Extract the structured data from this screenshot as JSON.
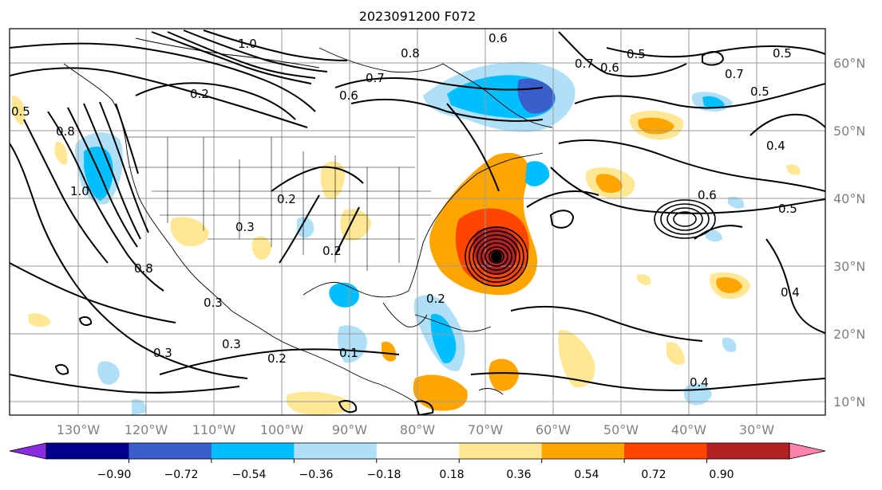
{
  "title": "2023091200 F072",
  "lon_labels": [
    "130°W",
    "120°W",
    "110°W",
    "100°W",
    "90°W",
    "80°W",
    "70°W",
    "60°W",
    "50°W",
    "40°W",
    "30°W"
  ],
  "lat_labels": [
    "10°N",
    "20°N",
    "30°N",
    "40°N",
    "50°N",
    "60°N"
  ],
  "colorbar": {
    "ticks": [
      "−0.90",
      "−0.72",
      "−0.54",
      "−0.36",
      "−0.18",
      "0.18",
      "0.36",
      "0.54",
      "0.72",
      "0.90"
    ],
    "colors": [
      "#8a2be2",
      "#00008b",
      "#3a5fcd",
      "#00bfff",
      "#b0e0f8",
      "#ffffff",
      "#ffe793",
      "#ffa500",
      "#ff4500",
      "#b22222",
      "#ff82ab"
    ]
  },
  "contour_labels": [
    {
      "text": "1.0"
    },
    {
      "text": "0.8"
    },
    {
      "text": "0.7"
    },
    {
      "text": "0.6"
    },
    {
      "text": "0.2"
    },
    {
      "text": "0.3"
    },
    {
      "text": "0.6"
    },
    {
      "text": "0.5"
    },
    {
      "text": "0.7"
    },
    {
      "text": "0.6"
    },
    {
      "text": "0.5"
    },
    {
      "text": "0.5"
    },
    {
      "text": "0.4"
    },
    {
      "text": "0.7"
    },
    {
      "text": "0.5"
    },
    {
      "text": "0.6"
    },
    {
      "text": "0.4"
    },
    {
      "text": "0.4"
    },
    {
      "text": "0.3"
    },
    {
      "text": "0.3"
    },
    {
      "text": "0.2"
    },
    {
      "text": "0.8"
    },
    {
      "text": "0.3"
    },
    {
      "text": "0.2"
    },
    {
      "text": "0.2"
    },
    {
      "text": "0.1"
    },
    {
      "text": "0.5"
    },
    {
      "text": "1.0"
    },
    {
      "text": "0.8"
    },
    {
      "text": "0.2"
    }
  ]
}
